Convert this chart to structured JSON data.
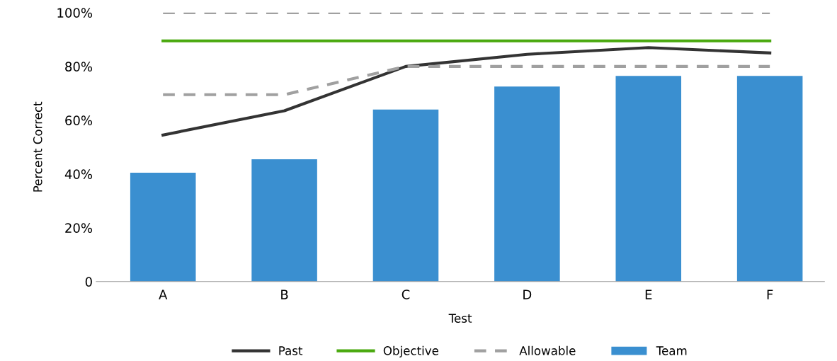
{
  "chart_data": {
    "type": "bar",
    "xlabel": "Test",
    "ylabel": "Percent Correct",
    "categories": [
      "A",
      "B",
      "C",
      "D",
      "E",
      "F"
    ],
    "series": [
      {
        "name": "Team",
        "color": "#3a8fd0",
        "values": [
          40.5,
          45.5,
          64,
          72.5,
          76.5,
          76.5
        ]
      },
      {
        "name": "Past",
        "type": "line",
        "color": "#333333",
        "line_style": "solid",
        "values": [
          54.5,
          63.5,
          80,
          84.5,
          87,
          85
        ]
      },
      {
        "name": "Objective",
        "type": "line",
        "color": "#4aa90f",
        "line_style": "solid",
        "values": [
          89.5,
          89.5,
          89.5,
          89.5,
          89.5,
          89.5
        ]
      },
      {
        "name": "Allowable",
        "type": "line",
        "color": "#a0a0a0",
        "line_style": "dashed",
        "values": [
          100,
          100,
          100,
          100,
          100,
          100
        ]
      },
      {
        "type": "line",
        "color": "#a0a0a0",
        "line_style": "dashed",
        "values": [
          69.5,
          69.5,
          80,
          80,
          80,
          80
        ]
      }
    ],
    "ylim": [
      0,
      100
    ],
    "yticks": [
      {
        "value": 0,
        "label": "0"
      },
      {
        "value": 20,
        "label": "20%"
      },
      {
        "value": 40,
        "label": "40%"
      },
      {
        "value": 60,
        "label": "60%"
      },
      {
        "value": 80,
        "label": "80%"
      },
      {
        "value": 100,
        "label": "100%"
      }
    ],
    "grid": false,
    "legend": "bottom",
    "marker": "none"
  }
}
